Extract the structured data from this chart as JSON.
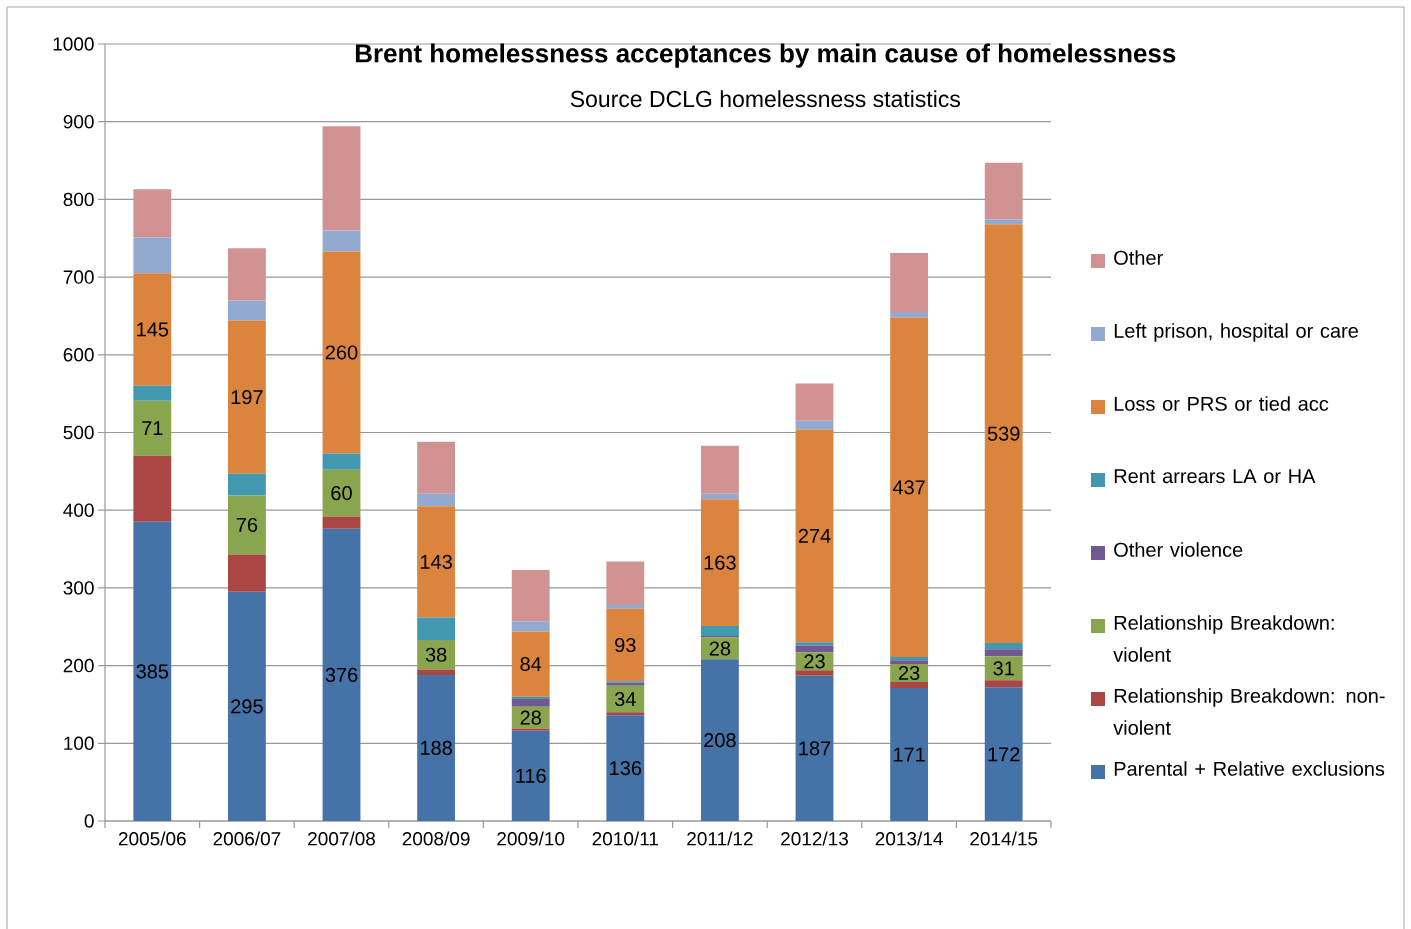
{
  "chart_data": {
    "type": "bar",
    "stacked": true,
    "title": "Brent homelessness acceptances by main cause of  homelessness",
    "subtitle": "Source DCLG homelessness statistics",
    "categories": [
      "2005/06",
      "2006/07",
      "2007/08",
      "2008/09",
      "2009/10",
      "2010/11",
      "2011/12",
      "2012/13",
      "2013/14",
      "2014/15"
    ],
    "series": [
      {
        "name": "Parental + Relative exclusions",
        "color": "#4572a7",
        "values": [
          385,
          295,
          376,
          188,
          116,
          136,
          208,
          187,
          171,
          172
        ],
        "value_labels": [
          "385",
          "295",
          "376",
          "188",
          "116",
          "136",
          "208",
          "187",
          "171",
          "172"
        ]
      },
      {
        "name": "Relationship Breakdown: non-violent",
        "color": "#aa4643",
        "values": [
          85,
          48,
          16,
          7,
          3,
          4,
          null,
          7,
          8,
          9
        ]
      },
      {
        "name": "Relationship Breakdown: violent",
        "color": "#89a54e",
        "values": [
          71,
          76,
          60,
          38,
          28,
          34,
          28,
          23,
          23,
          31
        ],
        "value_labels": [
          "71",
          "76",
          "60",
          "38",
          "28",
          "34",
          "28",
          "23",
          "23",
          "31"
        ]
      },
      {
        "name": "Other violence",
        "color": "#71588f",
        "values": [
          0,
          0,
          0,
          0,
          10,
          4,
          2,
          9,
          5,
          9
        ]
      },
      {
        "name": "Rent arrears LA or HA",
        "color": "#4198af",
        "values": [
          19,
          28,
          21,
          29,
          3,
          2,
          13,
          4,
          4,
          8
        ]
      },
      {
        "name": "Loss or PRS or tied acc",
        "color": "#db843d",
        "values": [
          145,
          197,
          260,
          143,
          84,
          93,
          163,
          274,
          437,
          539
        ],
        "value_labels": [
          "145",
          "197",
          "260",
          "143",
          "84",
          "93",
          "163",
          "274",
          "437",
          "539"
        ]
      },
      {
        "name": "Left prison, hospital or care",
        "color": "#93a9cf",
        "values": [
          46,
          26,
          27,
          16,
          13,
          5,
          7,
          11,
          7,
          6
        ]
      },
      {
        "name": "Other",
        "color": "#d19392",
        "values": [
          62,
          67,
          134,
          67,
          66,
          56,
          62,
          48,
          76,
          73
        ]
      }
    ],
    "ylim": [
      0,
      1000
    ],
    "yticks": [
      0,
      100,
      200,
      300,
      400,
      500,
      600,
      700,
      800,
      900,
      1000
    ],
    "grid": "y",
    "legend": "right"
  }
}
